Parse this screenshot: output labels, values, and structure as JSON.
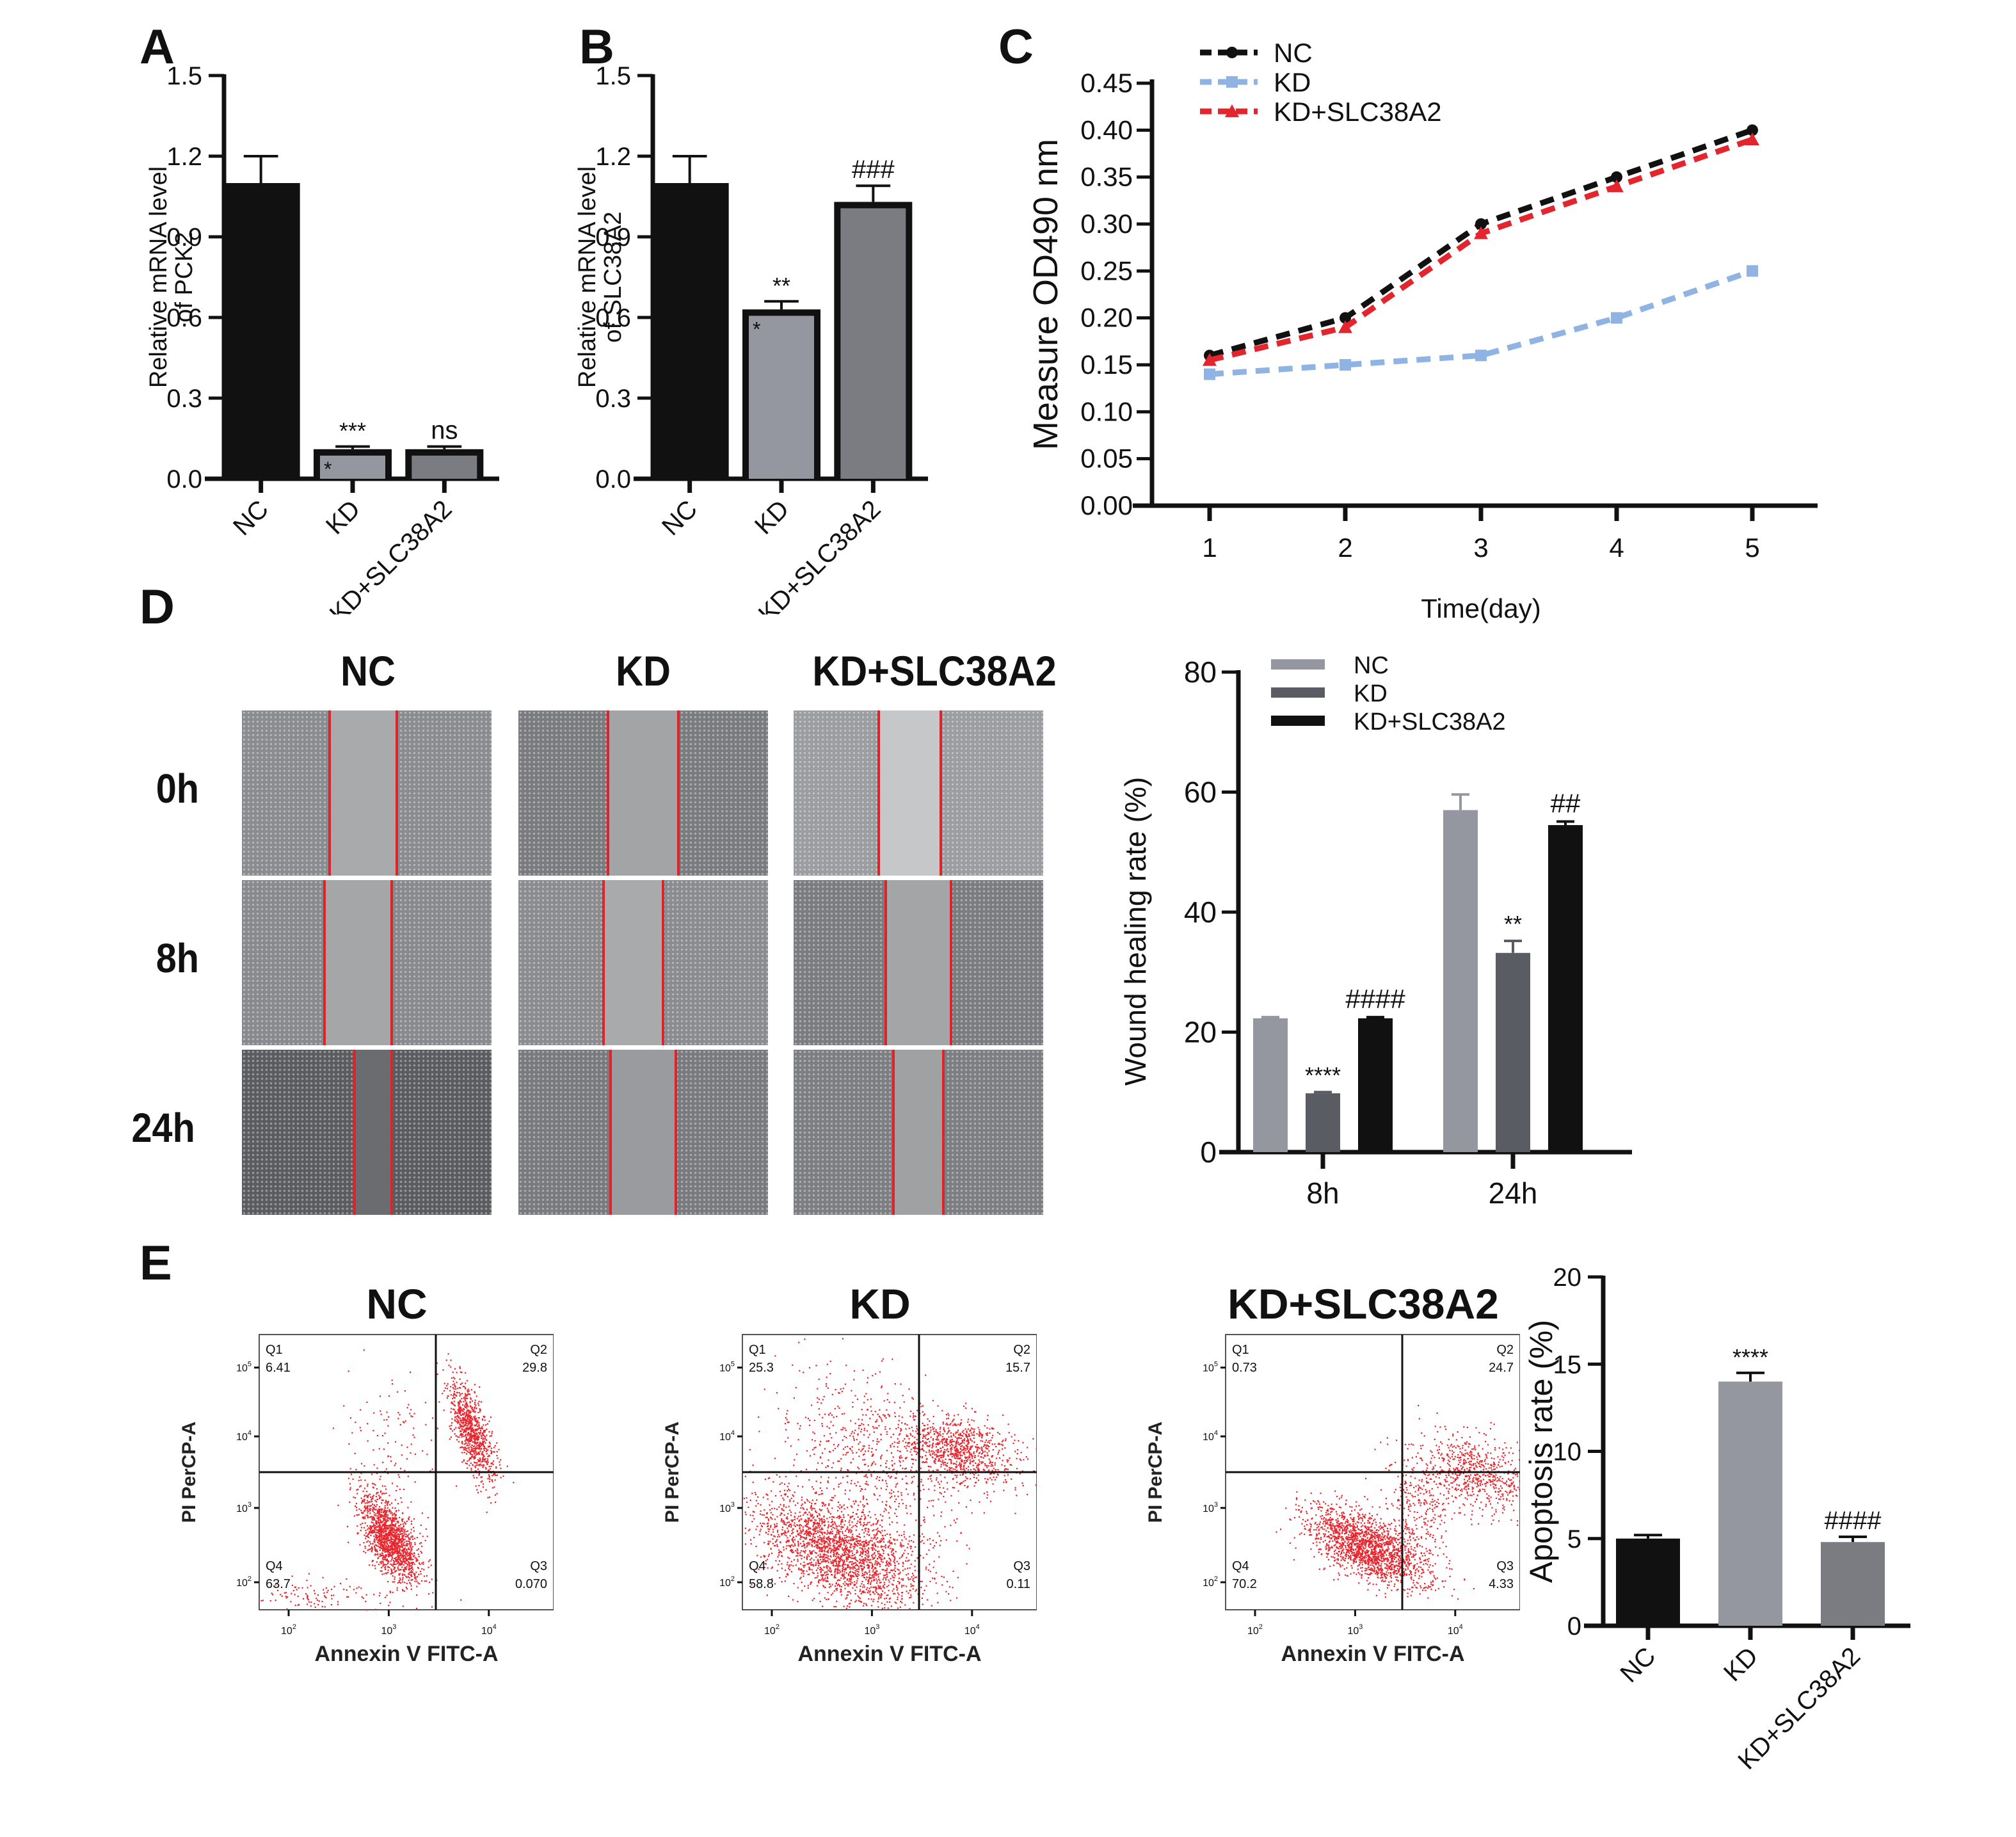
{
  "panels": {
    "A": "A",
    "B": "B",
    "C": "C",
    "D": "D",
    "E": "E"
  },
  "chart_data": [
    {
      "id": "A",
      "type": "bar",
      "title": "",
      "ylabel_lines": [
        "Relative mRNA level",
        "of PCK2"
      ],
      "xlabel": "",
      "categories": [
        "NC",
        "KD",
        "KD+SLC38A2"
      ],
      "values": [
        1.1,
        0.11,
        0.11
      ],
      "errors": [
        0.1,
        0.01,
        0.01
      ],
      "annotations": [
        "",
        "***",
        "ns"
      ],
      "inner_annotations": [
        "",
        "*",
        ""
      ],
      "bar_colors": [
        "#111111",
        "#94979f",
        "#7a7c82"
      ],
      "outlined": [
        false,
        true,
        true
      ],
      "ylim": [
        0,
        1.5
      ],
      "yticks": [
        "0.0",
        "0.3",
        "0.6",
        "0.9",
        "1.2",
        "1.5"
      ],
      "ytick_values": [
        0,
        0.3,
        0.6,
        0.9,
        1.2,
        1.5
      ]
    },
    {
      "id": "B",
      "type": "bar",
      "title": "",
      "ylabel_lines": [
        "Relative mRNA level",
        "of SLC38A2"
      ],
      "xlabel": "",
      "categories": [
        "NC",
        "KD",
        "KD+SLC38A2"
      ],
      "values": [
        1.1,
        0.63,
        1.03
      ],
      "errors": [
        0.1,
        0.03,
        0.06
      ],
      "annotations": [
        "",
        "**",
        "###"
      ],
      "inner_annotations": [
        "",
        "*",
        ""
      ],
      "bar_colors": [
        "#111111",
        "#94979f",
        "#7a7c82"
      ],
      "outlined": [
        false,
        true,
        true
      ],
      "ylim": [
        0,
        1.5
      ],
      "yticks": [
        "0.0",
        "0.3",
        "0.6",
        "0.9",
        "1.2",
        "1.5"
      ],
      "ytick_values": [
        0,
        0.3,
        0.6,
        0.9,
        1.2,
        1.5
      ]
    },
    {
      "id": "C",
      "type": "line",
      "title": "",
      "xlabel": "Time(day)",
      "ylabel": "Measure OD490 nm",
      "x": [
        1,
        2,
        3,
        4,
        5
      ],
      "xticks": [
        "1",
        "2",
        "3",
        "4",
        "5"
      ],
      "series": [
        {
          "name": "NC",
          "values": [
            0.16,
            0.2,
            0.3,
            0.35,
            0.4
          ],
          "color": "#111111",
          "marker": "circle"
        },
        {
          "name": "KD",
          "values": [
            0.14,
            0.15,
            0.16,
            0.2,
            0.25
          ],
          "color": "#8fb4e3",
          "marker": "square"
        },
        {
          "name": "KD+SLC38A2",
          "values": [
            0.155,
            0.19,
            0.29,
            0.34,
            0.39
          ],
          "color": "#e3262e",
          "marker": "triangle"
        }
      ],
      "ylim": [
        0,
        0.45
      ],
      "yticks": [
        "0.00",
        "0.05",
        "0.10",
        "0.15",
        "0.20",
        "0.25",
        "0.30",
        "0.35",
        "0.40",
        "0.45"
      ],
      "ytick_values": [
        0,
        0.05,
        0.1,
        0.15,
        0.2,
        0.25,
        0.3,
        0.35,
        0.4,
        0.45
      ],
      "legend": "top-left"
    },
    {
      "id": "D-chart",
      "type": "bar",
      "title": "",
      "xlabel": "",
      "ylabel": "Wound healing rate (%)",
      "categories": [
        "8h",
        "24h"
      ],
      "series": [
        {
          "name": "NC",
          "values": [
            22.3,
            57.0
          ],
          "errors": [
            0.2,
            2.6
          ],
          "color": "#94979f",
          "annotations": [
            "",
            ""
          ]
        },
        {
          "name": "KD",
          "values": [
            9.8,
            33.2
          ],
          "errors": [
            0.2,
            2.0
          ],
          "color": "#595c63",
          "annotations": [
            "****",
            "**"
          ]
        },
        {
          "name": "KD+SLC38A2",
          "values": [
            22.3,
            54.5
          ],
          "errors": [
            0.2,
            0.6
          ],
          "color": "#111111",
          "annotations": [
            "####",
            "##"
          ]
        }
      ],
      "ylim": [
        0,
        80
      ],
      "yticks": [
        "0",
        "20",
        "40",
        "60",
        "80"
      ],
      "ytick_values": [
        0,
        20,
        40,
        60,
        80
      ],
      "legend": "top-left"
    },
    {
      "id": "E-chart",
      "type": "bar",
      "title": "",
      "xlabel": "",
      "ylabel": "Apoptosis rate (%)",
      "categories": [
        "NC",
        "KD",
        "KD+SLC38A2"
      ],
      "values": [
        5.0,
        14.0,
        4.8
      ],
      "errors": [
        0.2,
        0.5,
        0.3
      ],
      "annotations": [
        "",
        "****",
        "####"
      ],
      "bar_colors": [
        "#111111",
        "#94979f",
        "#7a7c82"
      ],
      "ylim": [
        0,
        20
      ],
      "yticks": [
        "0",
        "5",
        "10",
        "15",
        "20"
      ],
      "ytick_values": [
        0,
        5,
        10,
        15,
        20
      ]
    }
  ],
  "wound_healing": {
    "columns": [
      "NC",
      "KD",
      "KD+SLC38A2"
    ],
    "rows": [
      "0h",
      "8h",
      "24h"
    ]
  },
  "flow_cytometry": {
    "xlabel": "Annexin V FITC-A",
    "ylabel": "PI PerCP-A",
    "xticks": [
      "10^2",
      "10^3",
      "10^4"
    ],
    "yticks": [
      "10^2",
      "10^3",
      "10^4",
      "10^5"
    ],
    "plots": [
      {
        "title": "NC",
        "Q1": {
          "label": "Q1",
          "value": "6.41"
        },
        "Q2": {
          "label": "Q2",
          "value": "29.8"
        },
        "Q3": {
          "label": "Q3",
          "value": "0.070"
        },
        "Q4": {
          "label": "Q4",
          "value": "63.7"
        }
      },
      {
        "title": "KD",
        "Q1": {
          "label": "Q1",
          "value": "25.3"
        },
        "Q2": {
          "label": "Q2",
          "value": "15.7"
        },
        "Q3": {
          "label": "Q3",
          "value": "0.11"
        },
        "Q4": {
          "label": "Q4",
          "value": "58.8"
        }
      },
      {
        "title": "KD+SLC38A2",
        "Q1": {
          "label": "Q1",
          "value": "0.73"
        },
        "Q2": {
          "label": "Q2",
          "value": "24.7"
        },
        "Q3": {
          "label": "Q3",
          "value": "4.33"
        },
        "Q4": {
          "label": "Q4",
          "value": "70.2"
        }
      }
    ]
  },
  "colors": {
    "wound_line": "#e0232b",
    "dot": "#e8242c"
  }
}
